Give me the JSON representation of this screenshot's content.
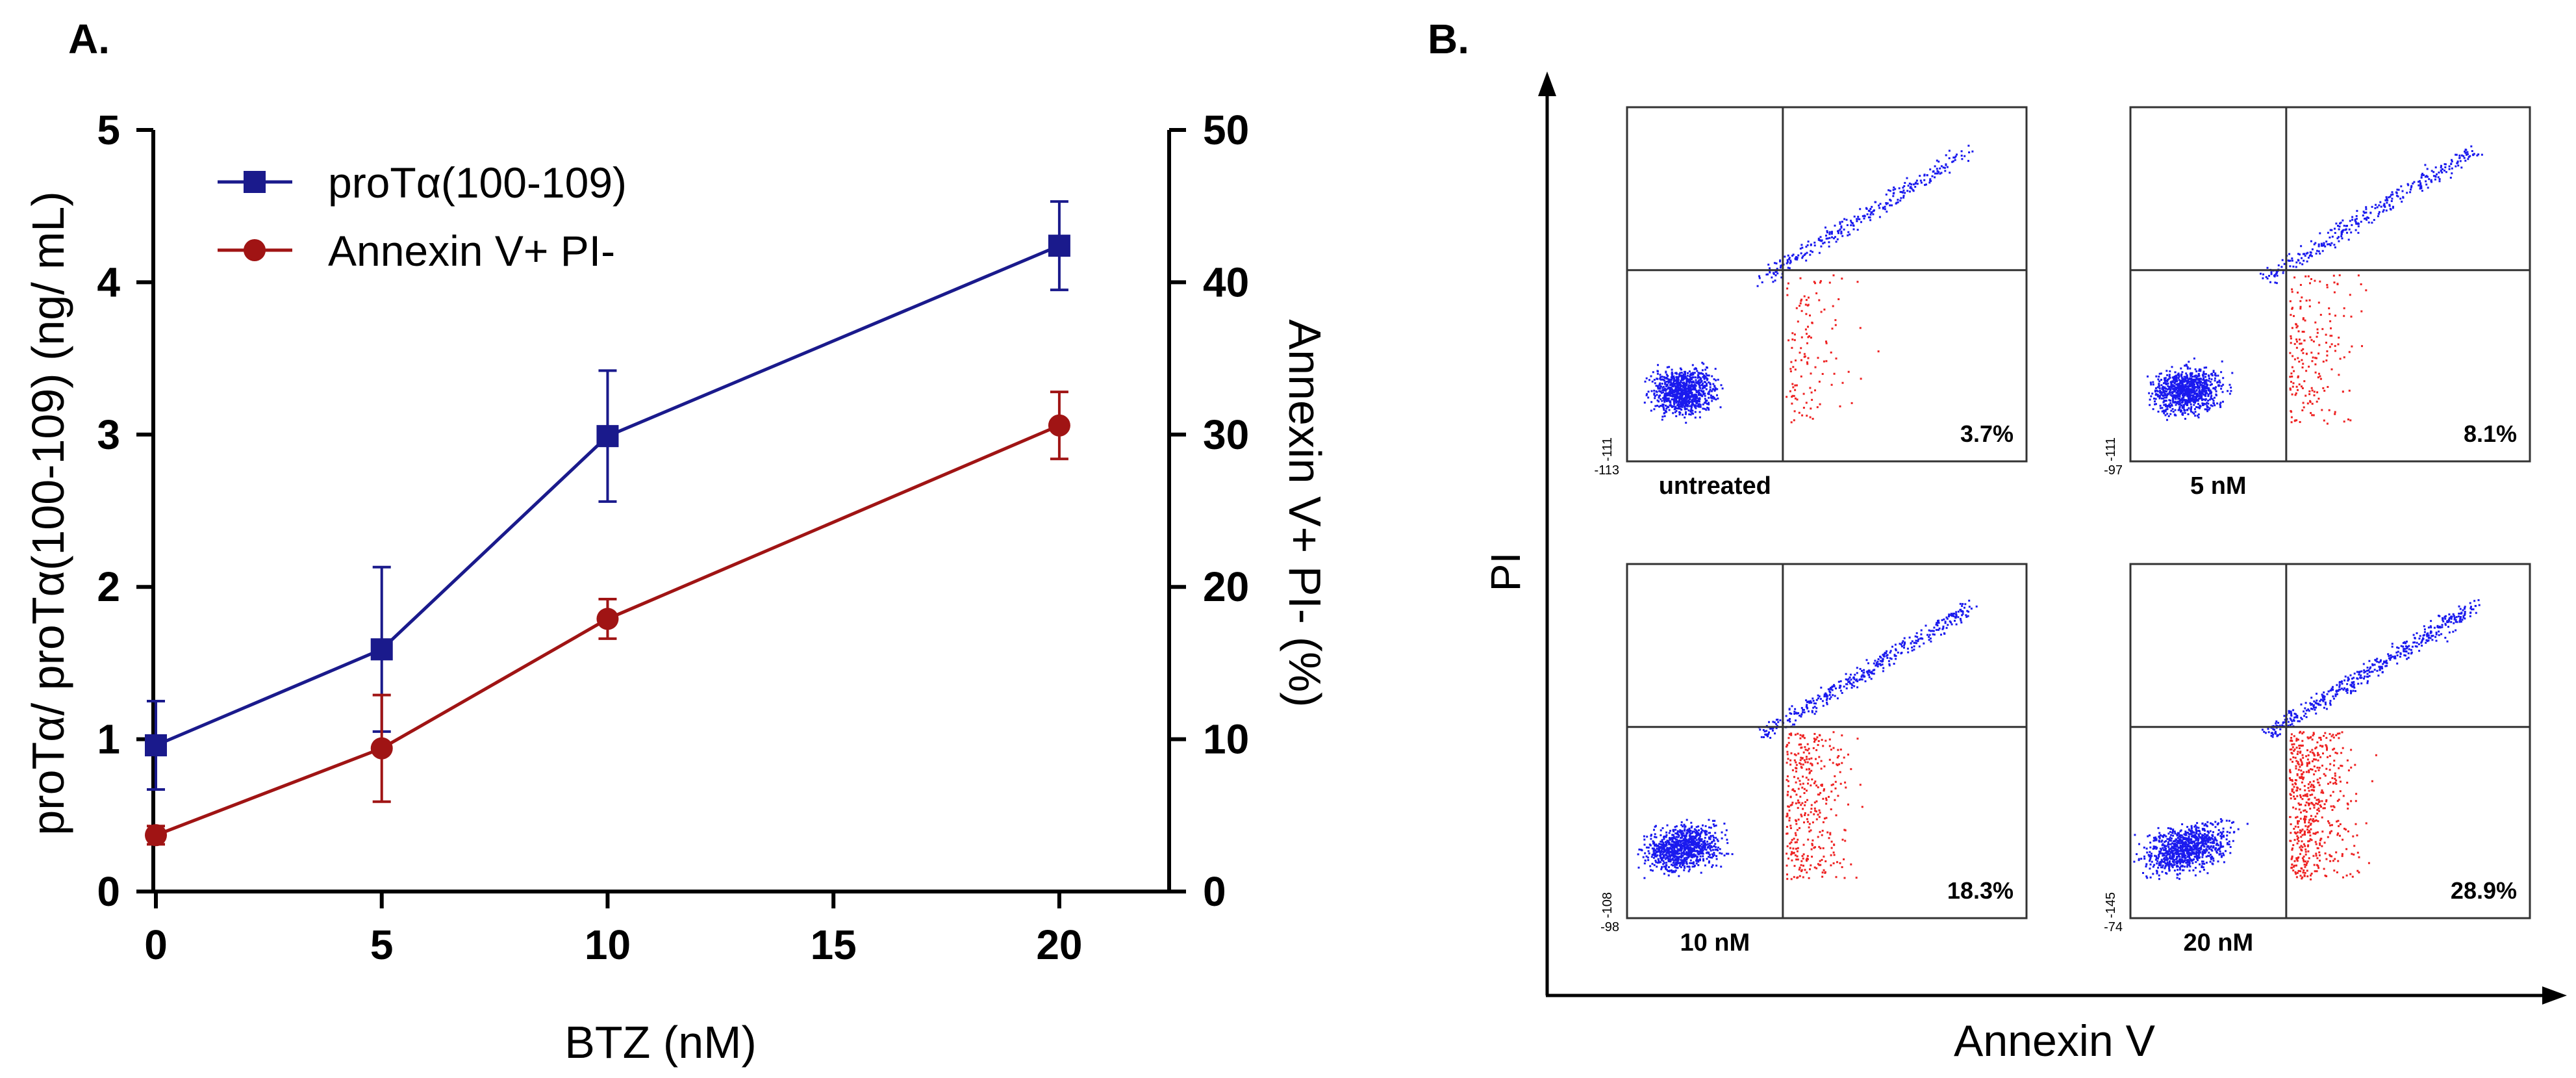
{
  "panel_a": {
    "label": "A.",
    "chart_data": {
      "type": "line",
      "title": "",
      "xlabel": "BTZ (nM)",
      "ylabel_left": "proTα/ proTα(100-109) (ng/ mL)",
      "ylabel_right": "Annexin V+ PI- (%)",
      "xlim": [
        0,
        22
      ],
      "xticks": [
        0,
        5,
        10,
        15,
        20
      ],
      "ylim_left": [
        0,
        5
      ],
      "yticks_left": [
        0,
        1,
        2,
        3,
        4,
        5
      ],
      "ylim_right": [
        0,
        50
      ],
      "yticks_right": [
        0,
        10,
        20,
        30,
        40,
        50
      ],
      "legend_position": "top-left",
      "series": [
        {
          "name": "proTα(100-109)",
          "axis": "left",
          "color": "#1a1a8c",
          "marker": "square",
          "x": [
            0,
            5,
            10,
            20
          ],
          "y": [
            0.96,
            1.59,
            2.99,
            4.24
          ],
          "err": [
            0.29,
            0.54,
            0.43,
            0.29
          ]
        },
        {
          "name": "Annexin V+ PI-",
          "axis": "right",
          "color": "#a01414",
          "marker": "circle",
          "x": [
            0,
            5,
            10,
            20
          ],
          "y": [
            3.7,
            9.4,
            17.9,
            30.6
          ],
          "err": [
            0.6,
            3.5,
            1.3,
            2.2
          ]
        }
      ]
    }
  },
  "panel_b": {
    "label": "B.",
    "y_axis_label": "PI",
    "x_axis_label": "Annexin V",
    "plots": [
      {
        "condition": "untreated",
        "percent": "3.7%",
        "x_min_label": "-113",
        "y_min_label": "-111",
        "early_apoptotic_fraction": 0.037
      },
      {
        "condition": "5 nM",
        "percent": "8.1%",
        "x_min_label": "-97",
        "y_min_label": "-111",
        "early_apoptotic_fraction": 0.081
      },
      {
        "condition": "10 nM",
        "percent": "18.3%",
        "x_min_label": "-98",
        "y_min_label": "-108",
        "early_apoptotic_fraction": 0.183
      },
      {
        "condition": "20 nM",
        "percent": "28.9%",
        "x_min_label": "-74",
        "y_min_label": "-145",
        "early_apoptotic_fraction": 0.289
      }
    ],
    "colors": {
      "population": "#1a1aee",
      "early_apoptotic": "#ee2222"
    }
  }
}
